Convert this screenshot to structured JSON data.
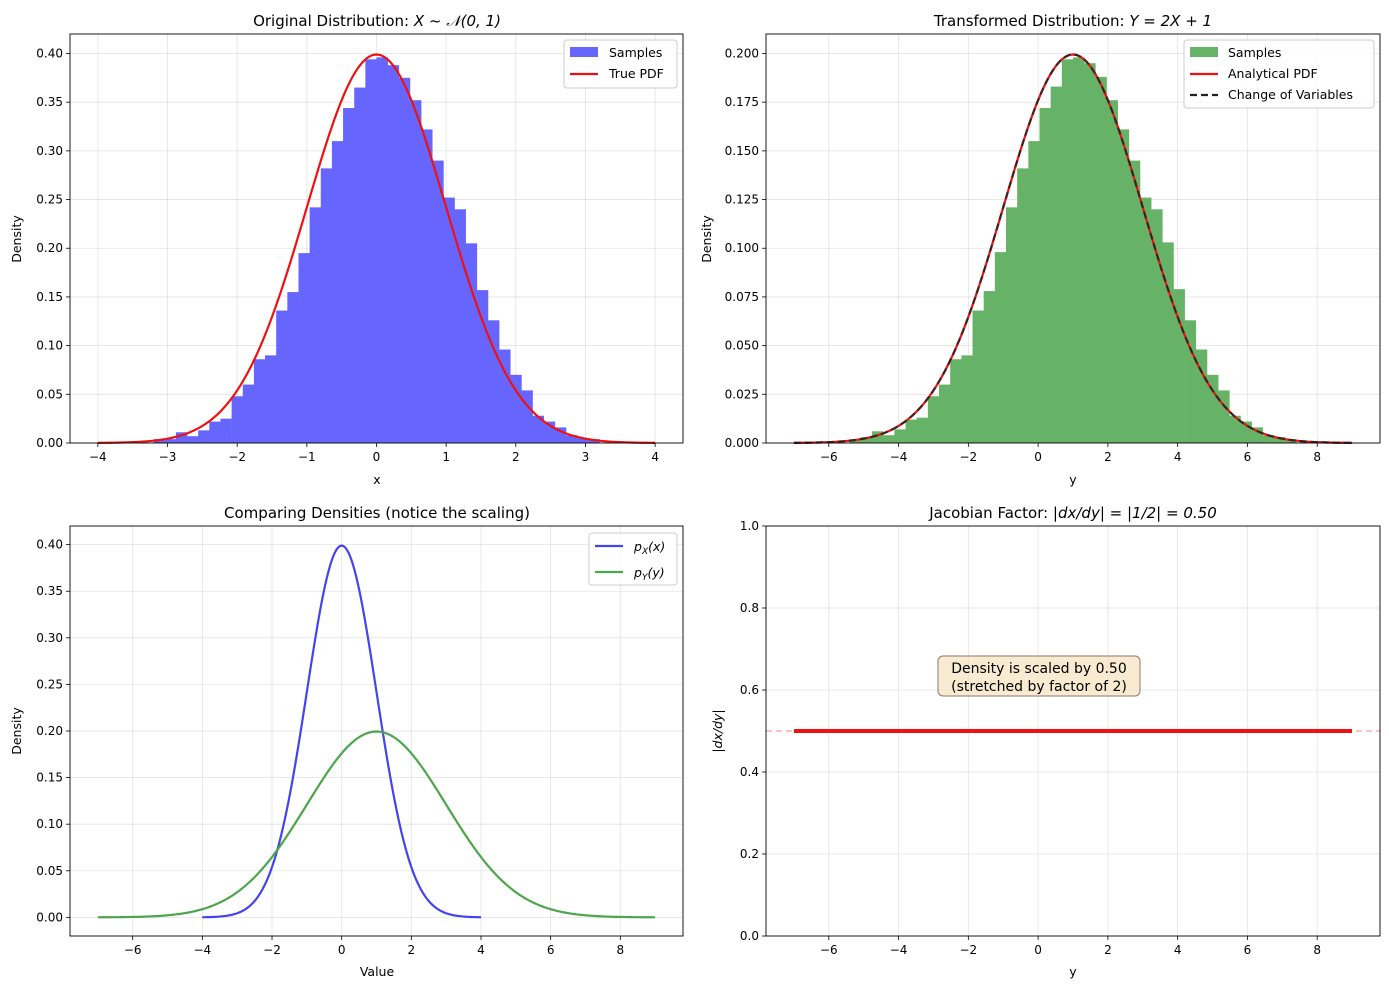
{
  "figure": {
    "background": "#ffffff"
  },
  "chart_data": [
    {
      "id": "p1",
      "type": "histogram+line",
      "title_parts": [
        "Original Distribution: ",
        "X ~ 𝒩(0, 1)"
      ],
      "title": "Original Distribution: X ~ N(0, 1)",
      "xlabel": "x",
      "ylabel": "Density",
      "xlim": [
        -4.4,
        4.4
      ],
      "ylim": [
        0,
        0.42
      ],
      "xticks": [
        -4,
        -3,
        -2,
        -1,
        0,
        1,
        2,
        3,
        4
      ],
      "xtick_labels": [
        "−4",
        "−3",
        "−2",
        "−1",
        "0",
        "1",
        "2",
        "3",
        "4"
      ],
      "yticks": [
        0,
        0.05,
        0.1,
        0.15,
        0.2,
        0.25,
        0.3,
        0.35,
        0.4
      ],
      "ytick_labels": [
        "0.00",
        "0.05",
        "0.10",
        "0.15",
        "0.20",
        "0.25",
        "0.30",
        "0.35",
        "0.40"
      ],
      "grid": true,
      "legend_position": "upper right",
      "histogram": {
        "name": "Samples",
        "color": "#6666ff",
        "bin_start": -3.2,
        "bin_width": 0.16,
        "values": [
          0.004,
          0.004,
          0.011,
          0.007,
          0.013,
          0.022,
          0.025,
          0.048,
          0.06,
          0.086,
          0.09,
          0.136,
          0.155,
          0.195,
          0.242,
          0.282,
          0.31,
          0.344,
          0.365,
          0.394,
          0.396,
          0.388,
          0.375,
          0.352,
          0.322,
          0.29,
          0.252,
          0.24,
          0.205,
          0.157,
          0.126,
          0.096,
          0.07,
          0.054,
          0.028,
          0.022,
          0.016,
          0.008,
          0.005,
          0.004
        ]
      },
      "lines": [
        {
          "name": "True PDF",
          "color": "#ee1111",
          "width": 2.2,
          "dash": "",
          "mu": 0,
          "sigma": 1,
          "x_range": [
            -4,
            4
          ]
        }
      ]
    },
    {
      "id": "p2",
      "type": "histogram+line",
      "title_parts": [
        "Transformed Distribution: ",
        "Y = 2X + 1"
      ],
      "title": "Transformed Distribution: Y = 2X + 1",
      "xlabel": "y",
      "ylabel": "Density",
      "xlim": [
        -7.8,
        9.8
      ],
      "ylim": [
        0,
        0.21
      ],
      "xticks": [
        -6,
        -4,
        -2,
        0,
        2,
        4,
        6,
        8
      ],
      "xtick_labels": [
        "−6",
        "−4",
        "−2",
        "0",
        "2",
        "4",
        "6",
        "8"
      ],
      "yticks": [
        0,
        0.025,
        0.05,
        0.075,
        0.1,
        0.125,
        0.15,
        0.175,
        0.2
      ],
      "ytick_labels": [
        "0.000",
        "0.025",
        "0.050",
        "0.075",
        "0.100",
        "0.125",
        "0.150",
        "0.175",
        "0.200"
      ],
      "grid": true,
      "legend_position": "upper right",
      "histogram": {
        "name": "Samples",
        "color": "#66b266",
        "bin_start": -5.4,
        "bin_width": 0.32,
        "values": [
          0.002,
          0.003,
          0.006,
          0.004,
          0.007,
          0.012,
          0.013,
          0.024,
          0.03,
          0.043,
          0.045,
          0.068,
          0.078,
          0.098,
          0.121,
          0.141,
          0.155,
          0.172,
          0.183,
          0.197,
          0.198,
          0.195,
          0.188,
          0.176,
          0.161,
          0.145,
          0.126,
          0.12,
          0.103,
          0.079,
          0.063,
          0.048,
          0.035,
          0.027,
          0.014,
          0.011,
          0.008,
          0.004,
          0.003,
          0.002
        ]
      },
      "lines": [
        {
          "name": "Analytical PDF",
          "color": "#ee1111",
          "width": 2.2,
          "dash": "",
          "mu": 1,
          "sigma": 2,
          "x_range": [
            -7,
            9
          ]
        },
        {
          "name": "Change of Variables",
          "color": "#222222",
          "width": 2.2,
          "dash": "7,4",
          "mu": 1,
          "sigma": 2,
          "x_range": [
            -7,
            9
          ],
          "alpha": 0.85
        }
      ]
    },
    {
      "id": "p3",
      "type": "line",
      "title_parts": [
        "Comparing Densities (notice the scaling)"
      ],
      "title": "Comparing Densities (notice the scaling)",
      "xlabel": "Value",
      "ylabel": "Density",
      "xlim": [
        -7.8,
        9.8
      ],
      "ylim": [
        -0.02,
        0.42
      ],
      "xticks": [
        -6,
        -4,
        -2,
        0,
        2,
        4,
        6,
        8
      ],
      "xtick_labels": [
        "−6",
        "−4",
        "−2",
        "0",
        "2",
        "4",
        "6",
        "8"
      ],
      "yticks": [
        0,
        0.05,
        0.1,
        0.15,
        0.2,
        0.25,
        0.3,
        0.35,
        0.4
      ],
      "ytick_labels": [
        "0.00",
        "0.05",
        "0.10",
        "0.15",
        "0.20",
        "0.25",
        "0.30",
        "0.35",
        "0.40"
      ],
      "grid": true,
      "legend_position": "upper right",
      "lines": [
        {
          "name": "p_X(x)",
          "legend_main": "p",
          "legend_sub": "X",
          "legend_arg": "(x)",
          "color": "#4444ee",
          "width": 2.2,
          "dash": "",
          "mu": 0,
          "sigma": 1,
          "x_range": [
            -4,
            4
          ]
        },
        {
          "name": "p_Y(y)",
          "legend_main": "p",
          "legend_sub": "Y",
          "legend_arg": "(y)",
          "color": "#4ca64c",
          "width": 2.2,
          "dash": "",
          "mu": 1,
          "sigma": 2,
          "x_range": [
            -7,
            9
          ]
        }
      ]
    },
    {
      "id": "p4",
      "type": "line",
      "title_parts": [
        "Jacobian Factor: ",
        "|dx/dy| = |1/2| = 0.50"
      ],
      "title": "Jacobian Factor: |dx/dy| = |1/2| = 0.50",
      "xlabel": "y",
      "ylabel": "|dx/dy|",
      "xlim": [
        -7.8,
        9.8
      ],
      "ylim": [
        0,
        1.0
      ],
      "xticks": [
        -6,
        -4,
        -2,
        0,
        2,
        4,
        6,
        8
      ],
      "xtick_labels": [
        "−6",
        "−4",
        "−2",
        "0",
        "2",
        "4",
        "6",
        "8"
      ],
      "yticks": [
        0,
        0.2,
        0.4,
        0.6,
        0.8,
        1.0
      ],
      "ytick_labels": [
        "0.0",
        "0.2",
        "0.4",
        "0.6",
        "0.8",
        "1.0"
      ],
      "grid": true,
      "constant_line": {
        "name": "|dx/dy|",
        "value": 0.5,
        "x_range": [
          -7,
          9
        ],
        "color": "#ee1111",
        "width": 4
      },
      "reference_line": {
        "value": 0.5,
        "color": "#ff9999",
        "dash": "6,4",
        "alpha": 0.6
      },
      "annotation": {
        "lines": [
          "Density is scaled by 0.50",
          "(stretched by factor of 2)"
        ],
        "x": 0,
        "y": 0.62,
        "box_fill": "#f5deb3",
        "box_stroke": "#8a7a66"
      }
    }
  ]
}
